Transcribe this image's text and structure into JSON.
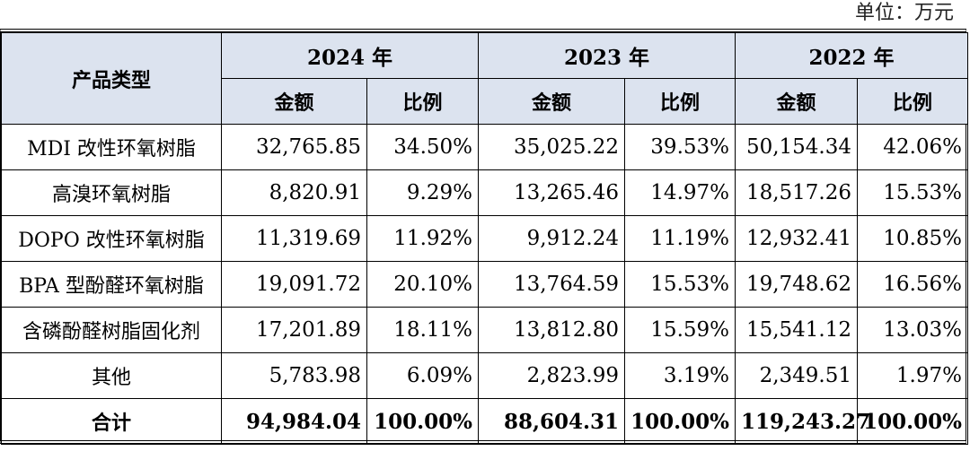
{
  "unit_label": "单位：万元",
  "header": {
    "product_type": "产品类型",
    "years": [
      "2024 年",
      "2023 年",
      "2022 年"
    ],
    "amount": "金额",
    "ratio": "比例"
  },
  "rows": [
    {
      "name": "MDI 改性环氧树脂",
      "v": [
        "32,765.85",
        "34.50%",
        "35,025.22",
        "39.53%",
        "50,154.34",
        "42.06%"
      ]
    },
    {
      "name": "高溴环氧树脂",
      "v": [
        "8,820.91",
        "9.29%",
        "13,265.46",
        "14.97%",
        "18,517.26",
        "15.53%"
      ]
    },
    {
      "name": "DOPO 改性环氧树脂",
      "v": [
        "11,319.69",
        "11.92%",
        "9,912.24",
        "11.19%",
        "12,932.41",
        "10.85%"
      ]
    },
    {
      "name": "BPA 型酚醛环氧树脂",
      "v": [
        "19,091.72",
        "20.10%",
        "13,764.59",
        "15.53%",
        "19,748.62",
        "16.56%"
      ]
    },
    {
      "name": "含磷酚醛树脂固化剂",
      "v": [
        "17,201.89",
        "18.11%",
        "13,812.80",
        "15.59%",
        "15,541.12",
        "13.03%"
      ]
    },
    {
      "name": "其他",
      "v": [
        "5,783.98",
        "6.09%",
        "2,823.99",
        "3.19%",
        "2,349.51",
        "1.97%"
      ]
    }
  ],
  "total": {
    "name": "合计",
    "v": [
      "94,984.04",
      "100.00%",
      "88,604.31",
      "100.00%",
      "119,243.27",
      "100.00%"
    ]
  }
}
